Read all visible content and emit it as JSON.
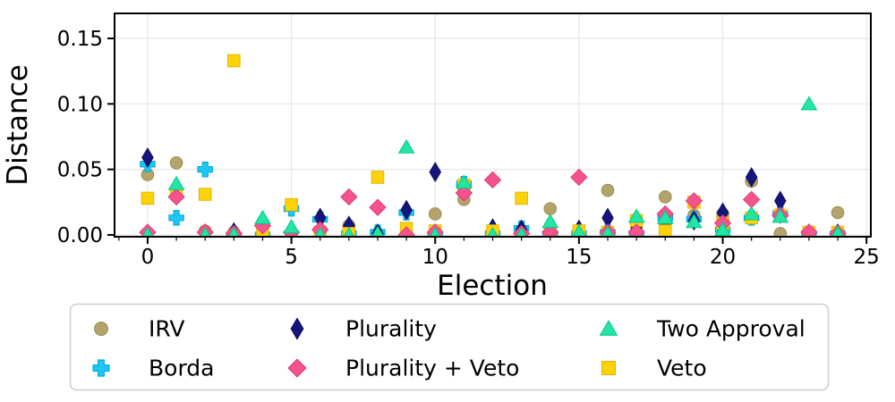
{
  "figure": {
    "background": "#ffffff",
    "grid_color": "#e6e6e6",
    "spine_color": "#000000",
    "legend_border_color": "#cccccc"
  },
  "chart_data": {
    "type": "scatter",
    "title": "",
    "xlabel": "Election",
    "ylabel": "Distance",
    "grid": true,
    "legend_position": "below",
    "xlim": [
      -1.15,
      25.15
    ],
    "ylim": [
      -0.0014,
      0.1691
    ],
    "xticks": {
      "values": [
        0,
        5,
        10,
        15,
        20,
        25
      ],
      "labels": [
        "0",
        "5",
        "10",
        "15",
        "20",
        "25"
      ]
    },
    "yticks": {
      "values": [
        0.0,
        0.05,
        0.1,
        0.15
      ],
      "labels": [
        "0.00",
        "0.05",
        "0.10",
        "0.15"
      ]
    },
    "minor_xticks_every": 1,
    "x": [
      0,
      1,
      2,
      3,
      4,
      5,
      6,
      7,
      8,
      9,
      10,
      11,
      12,
      13,
      14,
      15,
      16,
      17,
      18,
      19,
      20,
      21,
      22,
      23,
      24
    ],
    "draw_order": [
      "IRV",
      "Borda",
      "Plurality",
      "Veto",
      "Plurality + Veto",
      "Two Approval"
    ],
    "series": [
      {
        "name": "IRV",
        "marker": "circle",
        "color": "#b4a46c",
        "edge": "#9a8c52",
        "values": [
          0.046,
          0.055,
          0.003,
          0.002,
          0.001,
          0.001,
          0.001,
          0.007,
          0.001,
          0.001,
          0.016,
          0.027,
          0.001,
          0.002,
          0.02,
          0.001,
          0.034,
          0.003,
          0.029,
          0.015,
          0.016,
          0.041,
          0.001,
          0.001,
          0.017
        ]
      },
      {
        "name": "Borda",
        "marker": "plus",
        "color": "#1cc7f2",
        "edge": "#00a8d8",
        "values": [
          0.054,
          0.013,
          0.05,
          0.0,
          0.0,
          0.02,
          0.012,
          0.001,
          0.002,
          0.017,
          0.0,
          0.039,
          0.001,
          0.005,
          0.001,
          0.001,
          0.002,
          0.001,
          0.013,
          0.012,
          0.004,
          0.013,
          0.016,
          0.001,
          0.001
        ]
      },
      {
        "name": "Plurality",
        "marker": "thin-diamond",
        "color": "#16157d",
        "edge": "#0d0d60",
        "values": [
          0.059,
          0.036,
          0.001,
          0.002,
          0.003,
          0.001,
          0.013,
          0.007,
          0.001,
          0.019,
          0.048,
          0.037,
          0.005,
          0.004,
          0.001,
          0.004,
          0.013,
          0.006,
          0.008,
          0.011,
          0.017,
          0.044,
          0.026,
          0.001,
          0.001
        ]
      },
      {
        "name": "Plurality + Veto",
        "marker": "diamond",
        "color": "#f4538e",
        "edge": "#e03a78",
        "values": [
          0.002,
          0.029,
          0.002,
          0.001,
          0.007,
          0.002,
          0.004,
          0.029,
          0.021,
          0.0,
          0.002,
          0.032,
          0.042,
          0.001,
          0.002,
          0.044,
          0.002,
          0.002,
          0.016,
          0.026,
          0.009,
          0.027,
          0.015,
          0.002,
          0.001
        ]
      },
      {
        "name": "Two Approval",
        "marker": "triangle-up",
        "color": "#25e5a2",
        "edge": "#00c88a",
        "values": [
          0.0,
          0.039,
          0.0,
          0.0,
          0.013,
          0.006,
          0.0,
          0.0,
          0.001,
          0.067,
          0.0,
          0.04,
          0.0,
          0.0,
          0.01,
          0.002,
          0.001,
          0.014,
          0.013,
          0.01,
          0.004,
          0.016,
          0.014,
          0.1,
          0.001
        ]
      },
      {
        "name": "Veto",
        "marker": "square",
        "color": "#fdd20a",
        "edge": "#e0b800",
        "values": [
          0.028,
          0.032,
          0.031,
          0.133,
          0.001,
          0.023,
          0.002,
          0.001,
          0.044,
          0.005,
          0.003,
          0.038,
          0.003,
          0.028,
          0.002,
          0.003,
          0.002,
          0.011,
          0.003,
          0.025,
          0.009,
          0.013,
          0.015,
          0.002,
          0.002
        ]
      }
    ]
  }
}
